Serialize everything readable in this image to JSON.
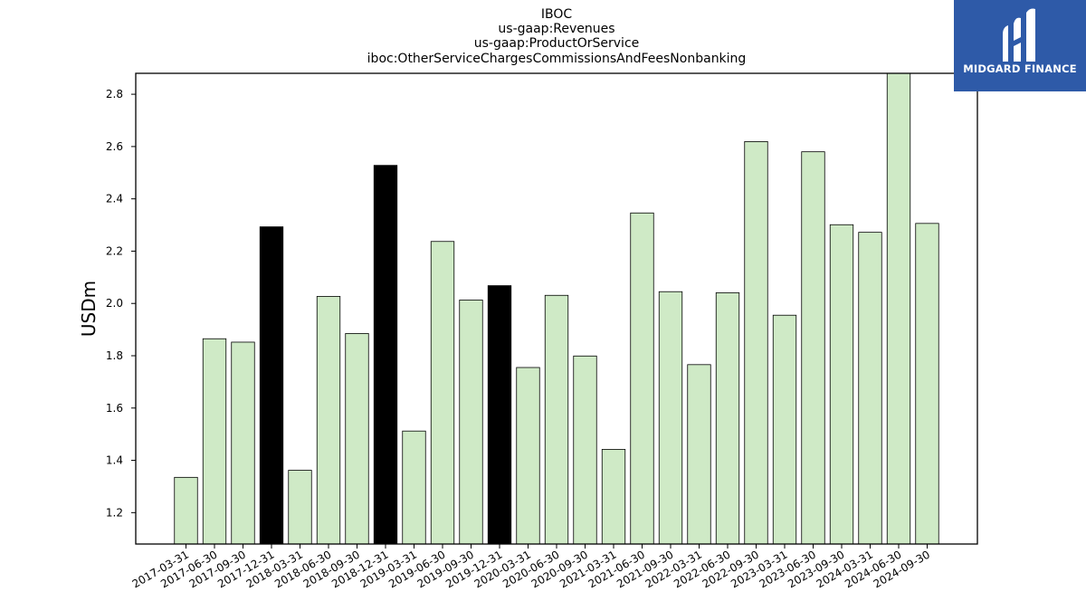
{
  "chart_data": {
    "type": "bar",
    "title_lines": [
      "IBOC",
      "us-gaap:Revenues",
      "us-gaap:ProductOrService",
      "iboc:OtherServiceChargesCommissionsAndFeesNonbanking"
    ],
    "ylabel": "USDm",
    "xlabel": "",
    "ylim": [
      1.08,
      2.88
    ],
    "yticks": [
      "1.2",
      "1.4",
      "1.6",
      "1.8",
      "2.0",
      "2.2",
      "2.4",
      "2.6",
      "2.8"
    ],
    "categories": [
      "2017-03-31",
      "2017-06-30",
      "2017-09-30",
      "2017-12-31",
      "2018-03-31",
      "2018-06-30",
      "2018-09-30",
      "2018-12-31",
      "2019-03-31",
      "2019-06-30",
      "2019-09-30",
      "2019-12-31",
      "2020-03-31",
      "2020-06-30",
      "2020-09-30",
      "2021-03-31",
      "2021-06-30",
      "2021-09-30",
      "2022-03-31",
      "2022-06-30",
      "2022-09-30",
      "2023-03-31",
      "2023-06-30",
      "2023-09-30",
      "2024-03-31",
      "2024-06-30",
      "2024-09-30"
    ],
    "values": [
      1.335,
      1.865,
      1.852,
      2.293,
      1.362,
      2.027,
      1.885,
      2.528,
      1.512,
      2.237,
      2.013,
      2.068,
      1.755,
      2.031,
      1.799,
      1.442,
      2.346,
      2.045,
      1.766,
      2.041,
      2.619,
      1.955,
      2.58,
      2.301,
      2.272,
      2.89,
      2.306
    ],
    "highlight": [
      false,
      false,
      false,
      true,
      false,
      false,
      false,
      true,
      false,
      false,
      false,
      true,
      false,
      false,
      false,
      false,
      false,
      false,
      false,
      false,
      false,
      false,
      false,
      false,
      false,
      false,
      false
    ],
    "colors": {
      "bar": "#cfeac6",
      "highlight": "#000000",
      "edge": "#000000"
    },
    "grid": false,
    "legend": "none"
  },
  "logo": {
    "text": "MIDGARD FINANCE",
    "icon": "midgard-logo-icon",
    "background": "#2e5aa8"
  }
}
